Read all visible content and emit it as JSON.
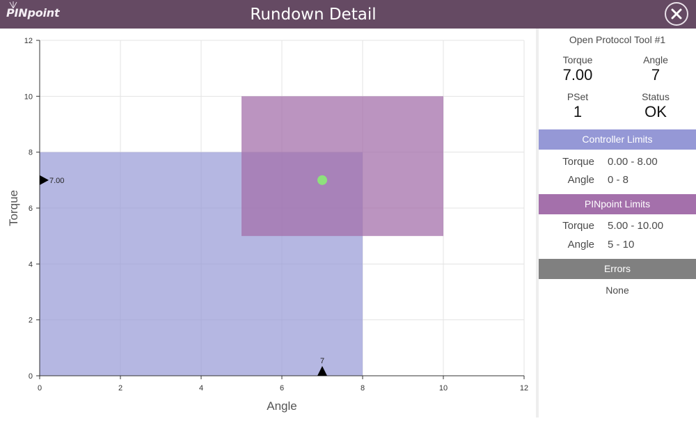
{
  "header": {
    "logo_text": "PINpoint",
    "title": "Rundown Detail",
    "close_icon": "close-circle-icon"
  },
  "chart_data": {
    "type": "scatter",
    "xlabel": "Angle",
    "ylabel": "Torque",
    "xlim": [
      0,
      12
    ],
    "ylim": [
      0,
      12
    ],
    "xticks": [
      0,
      2,
      4,
      6,
      8,
      10,
      12
    ],
    "yticks": [
      0,
      2,
      4,
      6,
      8,
      10,
      12
    ],
    "grid": true,
    "regions": [
      {
        "name": "Controller Limits",
        "x": [
          0,
          8
        ],
        "y": [
          0,
          8
        ],
        "color": "#9598d6"
      },
      {
        "name": "PINpoint Limits",
        "x": [
          5,
          10
        ],
        "y": [
          5,
          10
        ],
        "color": "#a470ab"
      }
    ],
    "points": [
      {
        "x": 7,
        "y": 7,
        "color": "#8ee07d"
      }
    ],
    "markers": {
      "y_marker": {
        "value": 7,
        "label": "7.00"
      },
      "x_marker": {
        "value": 7,
        "label": "7"
      }
    }
  },
  "panel": {
    "tool_name": "Open Protocol Tool #1",
    "torque_label": "Torque",
    "torque_value": "7.00",
    "angle_label": "Angle",
    "angle_value": "7",
    "pset_label": "PSet",
    "pset_value": "1",
    "status_label": "Status",
    "status_value": "OK",
    "controller": {
      "title": "Controller Limits",
      "torque_label": "Torque",
      "torque_range": "0.00 - 8.00",
      "angle_label": "Angle",
      "angle_range": "0 - 8"
    },
    "pinpoint": {
      "title": "PINpoint Limits",
      "torque_label": "Torque",
      "torque_range": "5.00 - 10.00",
      "angle_label": "Angle",
      "angle_range": "5 - 10"
    },
    "errors": {
      "title": "Errors",
      "value": "None"
    }
  }
}
